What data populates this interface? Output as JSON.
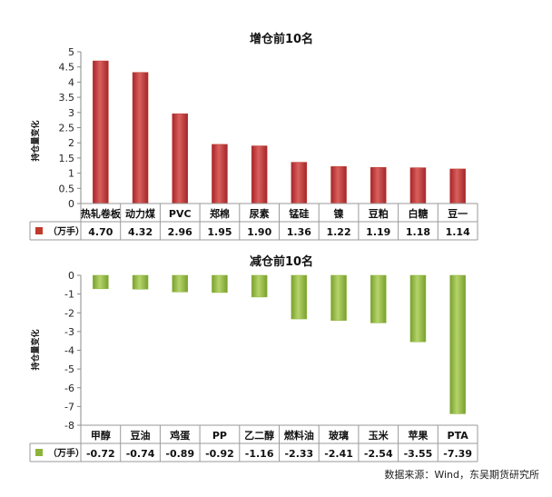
{
  "source": "数据来源：Wind，东吴期货研究所",
  "chart_data": [
    {
      "type": "bar",
      "title": "增仓前10名",
      "ylabel": "持仓量变化",
      "categories": [
        "热轧卷板",
        "动力煤",
        "PVC",
        "郑棉",
        "尿素",
        "锰硅",
        "镍",
        "豆粕",
        "白糖",
        "豆一"
      ],
      "series": [
        {
          "name": "（万手）",
          "color": "#c0392b",
          "values": [
            4.7,
            4.32,
            2.96,
            1.95,
            1.9,
            1.36,
            1.22,
            1.19,
            1.18,
            1.14
          ]
        }
      ],
      "value_labels": [
        "4.70",
        "4.32",
        "2.96",
        "1.95",
        "1.90",
        "1.36",
        "1.22",
        "1.19",
        "1.18",
        "1.14"
      ],
      "ylim": [
        0,
        5
      ],
      "yticks": [
        0,
        0.5,
        1,
        1.5,
        2,
        2.5,
        3,
        3.5,
        4,
        4.5,
        5
      ],
      "ytick_labels": [
        "0",
        "0.5",
        "1",
        "1.5",
        "2",
        "2.5",
        "3",
        "3.5",
        "4",
        "4.5",
        "5"
      ],
      "grid": false,
      "data_table": true
    },
    {
      "type": "bar",
      "title": "减仓前10名",
      "ylabel": "持仓量变化",
      "categories": [
        "甲醇",
        "豆油",
        "鸡蛋",
        "PP",
        "乙二醇",
        "燃料油",
        "玻璃",
        "玉米",
        "苹果",
        "PTA"
      ],
      "series": [
        {
          "name": "（万手）",
          "color": "#8db33a",
          "values": [
            -0.72,
            -0.74,
            -0.89,
            -0.92,
            -1.16,
            -2.33,
            -2.41,
            -2.54,
            -3.55,
            -7.39
          ]
        }
      ],
      "value_labels": [
        "-0.72",
        "-0.74",
        "-0.89",
        "-0.92",
        "-1.16",
        "-2.33",
        "-2.41",
        "-2.54",
        "-3.55",
        "-7.39"
      ],
      "ylim": [
        -8,
        0
      ],
      "yticks": [
        0,
        -1,
        -2,
        -3,
        -4,
        -5,
        -6,
        -7,
        -8
      ],
      "ytick_labels": [
        "0",
        "-1",
        "-2",
        "-3",
        "-4",
        "-5",
        "-6",
        "-7",
        "-8"
      ],
      "grid": false,
      "data_table": true
    }
  ]
}
